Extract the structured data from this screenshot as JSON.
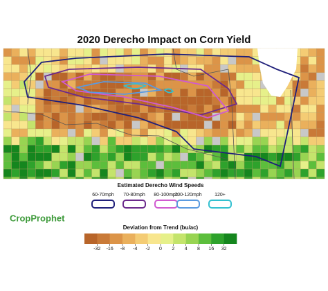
{
  "title": "2020 Derecho Impact on Corn Yield",
  "wind_legend": {
    "title": "Estimated Derecho Wind Speeds",
    "items": [
      {
        "label": "60-70mph",
        "color": "#1f1f7a"
      },
      {
        "label": "70-80mph",
        "color": "#6b2a8c"
      },
      {
        "label": "80-100mph",
        "color": "#d05ad0"
      },
      {
        "label": "100-120mph",
        "color": "#5a9ae0"
      },
      {
        "label": "120+",
        "color": "#33c0d0"
      }
    ]
  },
  "logo": {
    "text": "CropProphet"
  },
  "color_scale": {
    "title": "Deviation from Trend (bu/ac)",
    "ticks": [
      -32,
      -16,
      -8,
      -4,
      -2,
      0,
      2,
      4,
      8,
      16,
      32
    ],
    "colors": [
      "#b8652a",
      "#c97a38",
      "#dc9448",
      "#eab05c",
      "#f4cc74",
      "#f8e68e",
      "#e6f08a",
      "#c4e46c",
      "#98d452",
      "#5cbe3c",
      "#2ea22c",
      "#15861e"
    ]
  }
}
